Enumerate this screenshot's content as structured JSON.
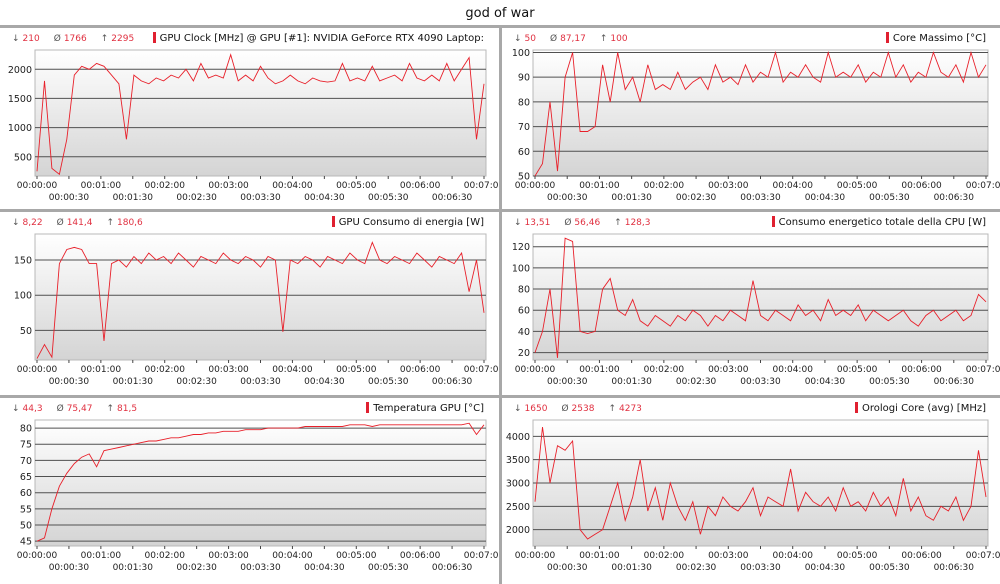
{
  "title": "god of war",
  "x_tick_labels": [
    "00:00:00",
    "00:00:30",
    "00:01:00",
    "00:01:30",
    "00:02:00",
    "00:02:30",
    "00:03:00",
    "00:03:30",
    "00:04:00",
    "00:04:30",
    "00:05:00",
    "00:05:30",
    "00:06:00",
    "00:06:30",
    "00:07:00"
  ],
  "colors": {
    "line": "#e8202a",
    "grid": "#505050",
    "stat": "#e03040"
  },
  "chart_data": [
    {
      "type": "line",
      "title": "GPU Clock [MHz] @ GPU [#1]: NVIDIA GeForce RTX 4090 Laptop:",
      "stats": {
        "min": "210",
        "avg": "1766",
        "max": "2295"
      },
      "ylim": [
        170,
        2330
      ],
      "yticks": [
        500,
        1000,
        1500,
        2000
      ],
      "xlim": [
        0,
        420
      ],
      "values": [
        250,
        1800,
        300,
        200,
        800,
        1900,
        2050,
        2000,
        2100,
        2050,
        1900,
        1750,
        800,
        1900,
        1800,
        1750,
        1850,
        1800,
        1900,
        1850,
        2000,
        1800,
        2100,
        1850,
        1900,
        1850,
        2250,
        1800,
        1900,
        1800,
        2050,
        1850,
        1750,
        1800,
        1900,
        1800,
        1750,
        1850,
        1800,
        1780,
        1800,
        2100,
        1800,
        1850,
        1800,
        2050,
        1800,
        1850,
        1900,
        1800,
        2100,
        1850,
        1800,
        1900,
        1800,
        2100,
        1800,
        2000,
        2200,
        800,
        1750
      ]
    },
    {
      "type": "line",
      "title": "Core Massimo [°C]",
      "stats": {
        "min": "50",
        "avg": "87,17",
        "max": "100"
      },
      "ylim": [
        50,
        101
      ],
      "yticks": [
        50,
        60,
        70,
        80,
        90,
        100
      ],
      "xlim": [
        0,
        420
      ],
      "values": [
        50,
        55,
        80,
        52,
        90,
        100,
        68,
        68,
        70,
        95,
        80,
        100,
        85,
        90,
        80,
        95,
        85,
        87,
        85,
        92,
        85,
        88,
        90,
        85,
        95,
        88,
        90,
        87,
        95,
        88,
        92,
        90,
        100,
        88,
        92,
        90,
        95,
        90,
        88,
        100,
        90,
        92,
        90,
        95,
        88,
        92,
        90,
        100,
        90,
        95,
        88,
        92,
        90,
        100,
        92,
        90,
        95,
        88,
        100,
        90,
        95
      ]
    },
    {
      "type": "line",
      "title": "GPU Consumo di energia [W]",
      "stats": {
        "min": "8,22",
        "avg": "141,4",
        "max": "180,6"
      },
      "ylim": [
        8,
        187
      ],
      "yticks": [
        50,
        100,
        150
      ],
      "xlim": [
        0,
        420
      ],
      "values": [
        10,
        30,
        12,
        145,
        165,
        168,
        165,
        145,
        145,
        35,
        145,
        150,
        140,
        155,
        145,
        160,
        150,
        155,
        145,
        160,
        150,
        140,
        155,
        150,
        145,
        160,
        150,
        145,
        155,
        150,
        140,
        155,
        150,
        48,
        150,
        145,
        155,
        150,
        140,
        155,
        150,
        145,
        160,
        150,
        145,
        175,
        150,
        145,
        155,
        150,
        145,
        160,
        150,
        140,
        155,
        150,
        145,
        160,
        105,
        150,
        75
      ]
    },
    {
      "type": "line",
      "title": "Consumo energetico totale della CPU [W]",
      "stats": {
        "min": "13,51",
        "avg": "56,46",
        "max": "128,3"
      },
      "ylim": [
        13,
        132
      ],
      "yticks": [
        20,
        40,
        60,
        80,
        100,
        120
      ],
      "xlim": [
        0,
        420
      ],
      "values": [
        20,
        40,
        80,
        15,
        128,
        125,
        40,
        38,
        40,
        80,
        90,
        60,
        55,
        70,
        50,
        45,
        55,
        50,
        45,
        55,
        50,
        60,
        55,
        45,
        55,
        50,
        60,
        55,
        50,
        88,
        55,
        50,
        60,
        55,
        50,
        65,
        55,
        60,
        50,
        70,
        55,
        60,
        55,
        65,
        50,
        60,
        55,
        50,
        55,
        60,
        50,
        45,
        55,
        60,
        50,
        55,
        60,
        50,
        55,
        75,
        68
      ]
    },
    {
      "type": "line",
      "title": "Temperatura GPU [°C]",
      "stats": {
        "min": "44,3",
        "avg": "75,47",
        "max": "81,5"
      },
      "ylim": [
        43.5,
        82.5
      ],
      "yticks": [
        45,
        50,
        55,
        60,
        65,
        70,
        75,
        80
      ],
      "xlim": [
        0,
        420
      ],
      "values": [
        45,
        46,
        55,
        62,
        66,
        69,
        71,
        72,
        68,
        73,
        73.5,
        74,
        74.5,
        75,
        75.5,
        76,
        76,
        76.5,
        77,
        77,
        77.5,
        78,
        78,
        78.5,
        78.5,
        79,
        79,
        79,
        79.5,
        79.5,
        79.5,
        80,
        80,
        80,
        80,
        80,
        80.5,
        80.5,
        80.5,
        80.5,
        80.5,
        80.5,
        81,
        81,
        81,
        80.5,
        81,
        81,
        81,
        81,
        81,
        81,
        81,
        81,
        81,
        81,
        81,
        81,
        81.5,
        78,
        81
      ]
    },
    {
      "type": "line",
      "title": "Orologi Core (avg) [MHz]",
      "stats": {
        "min": "1650",
        "avg": "2538",
        "max": "4273"
      },
      "ylim": [
        1650,
        4350
      ],
      "yticks": [
        2000,
        2500,
        3000,
        3500,
        4000
      ],
      "xlim": [
        0,
        420
      ],
      "values": [
        2600,
        4200,
        3000,
        3800,
        3700,
        3900,
        2000,
        1800,
        1900,
        2000,
        2500,
        3000,
        2200,
        2700,
        3500,
        2400,
        2900,
        2200,
        3000,
        2500,
        2200,
        2600,
        1900,
        2500,
        2300,
        2700,
        2500,
        2400,
        2600,
        2900,
        2300,
        2700,
        2600,
        2500,
        3300,
        2400,
        2800,
        2600,
        2500,
        2700,
        2400,
        2900,
        2500,
        2600,
        2400,
        2800,
        2500,
        2700,
        2300,
        3100,
        2400,
        2700,
        2300,
        2200,
        2500,
        2400,
        2700,
        2200,
        2500,
        3700,
        2700
      ]
    }
  ]
}
